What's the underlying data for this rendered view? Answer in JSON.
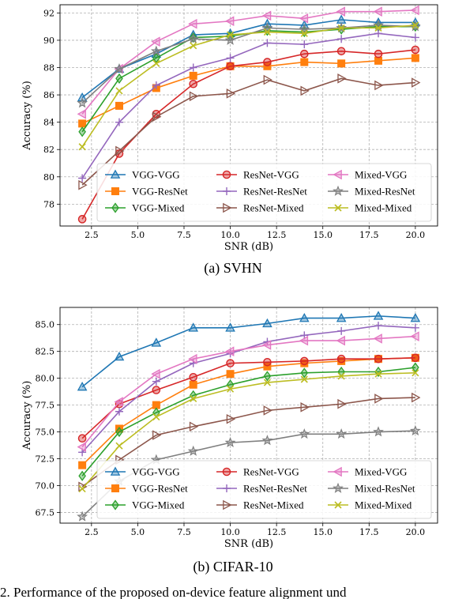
{
  "charts": [
    {
      "caption": "(a) SVHN",
      "chart_data": {
        "type": "line",
        "xlabel": "SNR (dB)",
        "ylabel": "Accuracy (%)",
        "x": [
          2,
          4,
          6,
          8,
          10,
          12,
          14,
          16,
          18,
          20
        ],
        "xlim": [
          0.8,
          21.2
        ],
        "ylim": [
          76.4,
          92.6
        ],
        "xticks": [
          2.5,
          5.0,
          7.5,
          10.0,
          12.5,
          15.0,
          17.5,
          20.0
        ],
        "xtick_labels": [
          "2.5",
          "5.0",
          "7.5",
          "10.0",
          "12.5",
          "15.0",
          "17.5",
          "20.0"
        ],
        "yticks": [
          78,
          80,
          82,
          84,
          86,
          88,
          90,
          92
        ],
        "ytick_labels": [
          "78",
          "80",
          "82",
          "84",
          "86",
          "88",
          "90",
          "92"
        ],
        "grid": true,
        "legend_placement": "lower-right",
        "series": [
          {
            "name": "VGG-VGG",
            "color": "#1f77b4",
            "marker": "triangle-up",
            "values": [
              85.8,
              87.9,
              89.0,
              90.4,
              90.5,
              91.2,
              91.1,
              91.5,
              91.3,
              91.3
            ]
          },
          {
            "name": "VGG-ResNet",
            "color": "#ff7f0e",
            "marker": "square",
            "values": [
              83.9,
              85.2,
              86.5,
              87.4,
              88.1,
              88.1,
              88.4,
              88.3,
              88.5,
              88.7
            ]
          },
          {
            "name": "VGG-Mixed",
            "color": "#2ca02c",
            "marker": "diamond",
            "values": [
              83.3,
              87.2,
              88.7,
              90.2,
              90.3,
              90.7,
              90.6,
              90.8,
              91.0,
              91.0
            ]
          },
          {
            "name": "ResNet-VGG",
            "color": "#d62728",
            "marker": "circle",
            "values": [
              76.9,
              81.7,
              84.6,
              86.8,
              88.1,
              88.4,
              89.0,
              89.2,
              89.0,
              89.3
            ]
          },
          {
            "name": "ResNet-ResNet",
            "color": "#9467bd",
            "marker": "plus",
            "values": [
              79.9,
              84.0,
              86.7,
              88.0,
              88.7,
              89.8,
              89.7,
              90.1,
              90.5,
              90.2
            ]
          },
          {
            "name": "ResNet-Mixed",
            "color": "#8c564b",
            "marker": "triangle-right",
            "values": [
              79.4,
              81.9,
              84.4,
              85.9,
              86.1,
              87.1,
              86.3,
              87.2,
              86.7,
              86.9
            ]
          },
          {
            "name": "Mixed-VGG",
            "color": "#e377c2",
            "marker": "triangle-left",
            "values": [
              84.6,
              87.9,
              89.9,
              91.2,
              91.4,
              91.8,
              91.6,
              92.1,
              92.1,
              92.2
            ]
          },
          {
            "name": "Mixed-ResNet",
            "color": "#7f7f7f",
            "marker": "star",
            "values": [
              85.4,
              87.9,
              89.2,
              90.1,
              90.0,
              90.9,
              90.8,
              90.9,
              91.1,
              91.0
            ]
          },
          {
            "name": "Mixed-Mixed",
            "color": "#bcbd22",
            "marker": "x",
            "values": [
              82.2,
              86.3,
              88.3,
              89.6,
              90.4,
              90.6,
              90.5,
              90.9,
              90.9,
              91.1
            ]
          }
        ]
      }
    },
    {
      "caption": "(b) CIFAR-10",
      "chart_data": {
        "type": "line",
        "xlabel": "SNR (dB)",
        "ylabel": "Accuracy (%)",
        "x": [
          2,
          4,
          6,
          8,
          10,
          12,
          14,
          16,
          18,
          20
        ],
        "xlim": [
          0.8,
          21.2
        ],
        "ylim": [
          66.5,
          86.6
        ],
        "xticks": [
          2.5,
          5.0,
          7.5,
          10.0,
          12.5,
          15.0,
          17.5,
          20.0
        ],
        "xtick_labels": [
          "2.5",
          "5.0",
          "7.5",
          "10.0",
          "12.5",
          "15.0",
          "17.5",
          "20.0"
        ],
        "yticks": [
          67.5,
          70.0,
          72.5,
          75.0,
          77.5,
          80.0,
          82.5,
          85.0
        ],
        "ytick_labels": [
          "67.5",
          "70.0",
          "72.5",
          "75.0",
          "77.5",
          "80.0",
          "82.5",
          "85.0"
        ],
        "grid": true,
        "legend_placement": "lower-right",
        "series": [
          {
            "name": "VGG-VGG",
            "color": "#1f77b4",
            "marker": "triangle-up",
            "values": [
              79.2,
              82.0,
              83.3,
              84.7,
              84.7,
              85.1,
              85.6,
              85.6,
              85.8,
              85.6
            ]
          },
          {
            "name": "VGG-ResNet",
            "color": "#ff7f0e",
            "marker": "square",
            "values": [
              71.9,
              75.3,
              77.5,
              79.4,
              80.4,
              81.1,
              81.4,
              81.6,
              81.8,
              81.9
            ]
          },
          {
            "name": "VGG-Mixed",
            "color": "#2ca02c",
            "marker": "diamond",
            "values": [
              70.9,
              75.0,
              76.8,
              78.4,
              79.4,
              80.2,
              80.5,
              80.6,
              80.6,
              81.0
            ]
          },
          {
            "name": "ResNet-VGG",
            "color": "#d62728",
            "marker": "circle",
            "values": [
              74.4,
              77.6,
              78.9,
              80.1,
              81.4,
              81.5,
              81.6,
              81.8,
              81.8,
              81.9
            ]
          },
          {
            "name": "ResNet-ResNet",
            "color": "#9467bd",
            "marker": "plus",
            "values": [
              73.1,
              76.9,
              79.7,
              81.4,
              82.3,
              83.4,
              84.0,
              84.4,
              84.9,
              84.7
            ]
          },
          {
            "name": "ResNet-Mixed",
            "color": "#8c564b",
            "marker": "triangle-right",
            "values": [
              69.9,
              72.4,
              74.7,
              75.5,
              76.2,
              77.0,
              77.3,
              77.6,
              78.1,
              78.2
            ]
          },
          {
            "name": "Mixed-VGG",
            "color": "#e377c2",
            "marker": "triangle-left",
            "values": [
              73.6,
              77.8,
              80.4,
              81.8,
              82.5,
              83.1,
              83.5,
              83.5,
              83.7,
              83.9
            ]
          },
          {
            "name": "Mixed-ResNet",
            "color": "#7f7f7f",
            "marker": "star",
            "values": [
              67.1,
              70.4,
              72.4,
              73.2,
              74.0,
              74.2,
              74.8,
              74.8,
              75.0,
              75.1
            ]
          },
          {
            "name": "Mixed-Mixed",
            "color": "#bcbd22",
            "marker": "x",
            "values": [
              69.7,
              73.7,
              76.4,
              78.1,
              79.0,
              79.6,
              79.9,
              80.2,
              80.4,
              80.5
            ]
          }
        ]
      }
    }
  ],
  "footer_text": "2.  Performance of the proposed on-device feature alignment und"
}
